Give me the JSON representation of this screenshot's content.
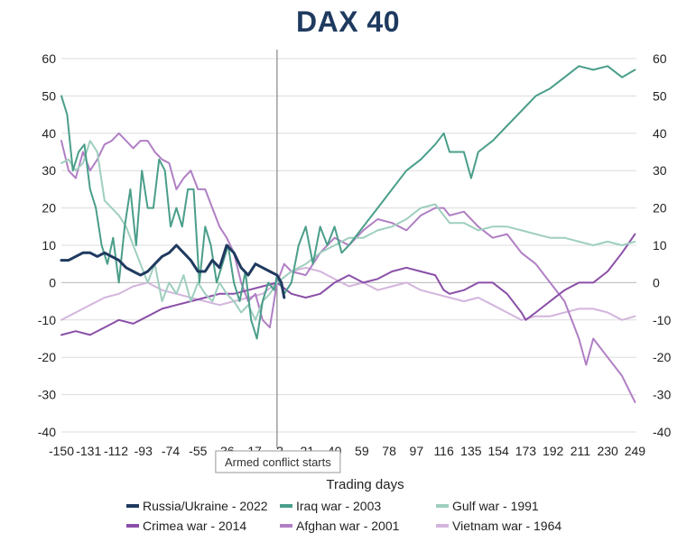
{
  "chart_data": {
    "type": "line",
    "title": "DAX 40",
    "xlabel": "Trading days",
    "ylabel": "",
    "xlim": [
      -150,
      250
    ],
    "ylim": [
      -40,
      60
    ],
    "y_ticks": [
      -40,
      -30,
      -20,
      -10,
      0,
      10,
      20,
      30,
      40,
      50,
      60
    ],
    "y_tick_labels": [
      "-40",
      "-30",
      "-20",
      "-10",
      "0",
      "10",
      "20",
      "30",
      "40",
      "50",
      "60"
    ],
    "x_ticks": [
      -150,
      -131,
      -112,
      -93,
      -74,
      -55,
      -36,
      -17,
      2,
      21,
      40,
      59,
      78,
      97,
      116,
      135,
      154,
      173,
      192,
      211,
      230,
      249
    ],
    "x_tick_labels": [
      "-150",
      "-131",
      "-112",
      "-93",
      "-74",
      "-55",
      "-36",
      "-17",
      "2",
      "21",
      "40",
      "59",
      "78",
      "97",
      "116",
      "135",
      "154",
      "173",
      "192",
      "211",
      "230",
      "249"
    ],
    "grid": "horizontal",
    "secondary_y_axis": true,
    "legend_position": "bottom",
    "annotation": {
      "x": 0,
      "text": "Armed conflict starts"
    },
    "series": [
      {
        "name": "Russia/Ukraine - 2022",
        "color": "#1f3a5f",
        "width": 3,
        "x": [
          -150,
          -145,
          -140,
          -135,
          -130,
          -125,
          -120,
          -115,
          -110,
          -105,
          -100,
          -95,
          -90,
          -85,
          -80,
          -75,
          -70,
          -65,
          -60,
          -55,
          -50,
          -45,
          -40,
          -35,
          -30,
          -25,
          -20,
          -15,
          -10,
          -5,
          0,
          3,
          5
        ],
        "y": [
          6,
          6,
          7,
          8,
          8,
          7,
          8,
          7,
          6,
          4,
          3,
          2,
          3,
          5,
          7,
          8,
          10,
          8,
          6,
          3,
          3,
          6,
          4,
          10,
          8,
          4,
          2,
          5,
          4,
          3,
          2,
          0,
          -4
        ]
      },
      {
        "name": "Iraq war - 2003",
        "color": "#4a9e8a",
        "width": 2,
        "x": [
          -150,
          -146,
          -142,
          -138,
          -134,
          -130,
          -126,
          -122,
          -118,
          -114,
          -110,
          -106,
          -102,
          -98,
          -94,
          -90,
          -86,
          -82,
          -78,
          -74,
          -70,
          -66,
          -62,
          -58,
          -54,
          -50,
          -46,
          -42,
          -38,
          -34,
          -30,
          -26,
          -22,
          -18,
          -14,
          -10,
          -6,
          -2,
          0,
          5,
          10,
          15,
          20,
          25,
          30,
          35,
          40,
          45,
          50,
          60,
          70,
          80,
          90,
          100,
          110,
          116,
          120,
          130,
          135,
          140,
          150,
          160,
          170,
          180,
          190,
          200,
          210,
          220,
          230,
          240,
          249
        ],
        "y": [
          50,
          45,
          30,
          35,
          37,
          25,
          20,
          10,
          5,
          12,
          0,
          15,
          25,
          10,
          30,
          20,
          20,
          33,
          30,
          15,
          20,
          15,
          25,
          25,
          0,
          15,
          10,
          0,
          5,
          10,
          0,
          -5,
          3,
          -10,
          -15,
          -5,
          0,
          -2,
          2,
          -3,
          0,
          10,
          15,
          5,
          15,
          10,
          15,
          8,
          10,
          15,
          20,
          25,
          30,
          33,
          37,
          40,
          35,
          35,
          28,
          35,
          38,
          42,
          46,
          50,
          52,
          55,
          58,
          57,
          58,
          55,
          57
        ]
      },
      {
        "name": "Gulf war - 1991",
        "color": "#9fcfbe",
        "width": 2,
        "x": [
          -150,
          -145,
          -140,
          -135,
          -130,
          -125,
          -120,
          -115,
          -110,
          -105,
          -100,
          -95,
          -90,
          -85,
          -80,
          -75,
          -70,
          -65,
          -60,
          -55,
          -50,
          -45,
          -40,
          -35,
          -30,
          -25,
          -20,
          -15,
          -10,
          -5,
          0,
          10,
          20,
          30,
          40,
          50,
          60,
          70,
          80,
          90,
          100,
          110,
          116,
          120,
          130,
          140,
          150,
          160,
          170,
          180,
          190,
          200,
          210,
          220,
          230,
          240,
          249
        ],
        "y": [
          32,
          33,
          30,
          32,
          38,
          35,
          22,
          20,
          18,
          15,
          10,
          5,
          0,
          5,
          -5,
          0,
          -3,
          2,
          -5,
          0,
          -3,
          -5,
          0,
          -3,
          -5,
          -8,
          -6,
          -10,
          -5,
          -3,
          0,
          3,
          5,
          8,
          10,
          12,
          12,
          14,
          15,
          17,
          20,
          21,
          18,
          16,
          16,
          14,
          15,
          15,
          14,
          13,
          12,
          12,
          11,
          10,
          11,
          10,
          11
        ]
      },
      {
        "name": "Crimea war - 2014",
        "color": "#8a4fa8",
        "width": 2,
        "x": [
          -150,
          -140,
          -130,
          -120,
          -110,
          -100,
          -90,
          -80,
          -70,
          -60,
          -50,
          -40,
          -30,
          -20,
          -10,
          0,
          10,
          20,
          30,
          40,
          50,
          60,
          70,
          80,
          90,
          100,
          110,
          116,
          120,
          130,
          140,
          150,
          160,
          170,
          173,
          180,
          190,
          200,
          210,
          220,
          230,
          240,
          249
        ],
        "y": [
          -14,
          -13,
          -14,
          -12,
          -10,
          -11,
          -9,
          -7,
          -6,
          -5,
          -4,
          -3,
          -3,
          -2,
          -1,
          0,
          -3,
          -4,
          -3,
          0,
          2,
          0,
          1,
          3,
          4,
          3,
          2,
          -2,
          -3,
          -2,
          0,
          0,
          -3,
          -8,
          -10,
          -8,
          -5,
          -2,
          0,
          0,
          3,
          8,
          13
        ]
      },
      {
        "name": "Afghan war - 2001",
        "color": "#b07fc4",
        "width": 2,
        "x": [
          -150,
          -145,
          -140,
          -135,
          -130,
          -125,
          -120,
          -115,
          -110,
          -105,
          -100,
          -95,
          -90,
          -85,
          -80,
          -75,
          -70,
          -65,
          -60,
          -55,
          -50,
          -45,
          -40,
          -35,
          -30,
          -25,
          -20,
          -15,
          -10,
          -5,
          0,
          5,
          10,
          20,
          30,
          40,
          50,
          60,
          70,
          80,
          90,
          100,
          110,
          116,
          120,
          130,
          140,
          150,
          160,
          170,
          180,
          190,
          200,
          210,
          215,
          220,
          230,
          240,
          249
        ],
        "y": [
          38,
          30,
          28,
          35,
          30,
          33,
          37,
          38,
          40,
          38,
          36,
          38,
          38,
          35,
          33,
          32,
          25,
          28,
          30,
          25,
          25,
          20,
          15,
          12,
          8,
          0,
          -5,
          -3,
          -10,
          -12,
          0,
          5,
          3,
          2,
          8,
          12,
          10,
          14,
          17,
          16,
          14,
          18,
          20,
          20,
          18,
          19,
          15,
          12,
          13,
          8,
          5,
          0,
          -5,
          -15,
          -22,
          -15,
          -20,
          -25,
          -32
        ]
      },
      {
        "name": "Vietnam war - 1964",
        "color": "#d3b5dd",
        "width": 2,
        "x": [
          -150,
          -140,
          -130,
          -120,
          -110,
          -100,
          -90,
          -80,
          -70,
          -60,
          -50,
          -40,
          -30,
          -20,
          -10,
          0,
          10,
          20,
          30,
          40,
          50,
          60,
          70,
          80,
          90,
          100,
          110,
          120,
          130,
          140,
          150,
          160,
          170,
          180,
          190,
          200,
          210,
          220,
          230,
          240,
          249
        ],
        "y": [
          -10,
          -8,
          -6,
          -4,
          -3,
          -1,
          0,
          -2,
          -3,
          -4,
          -5,
          -6,
          -5,
          -4,
          -3,
          0,
          3,
          4,
          3,
          1,
          -1,
          0,
          -2,
          -1,
          0,
          -2,
          -3,
          -4,
          -5,
          -4,
          -6,
          -8,
          -10,
          -9,
          -9,
          -8,
          -7,
          -7,
          -8,
          -10,
          -9
        ]
      }
    ]
  }
}
